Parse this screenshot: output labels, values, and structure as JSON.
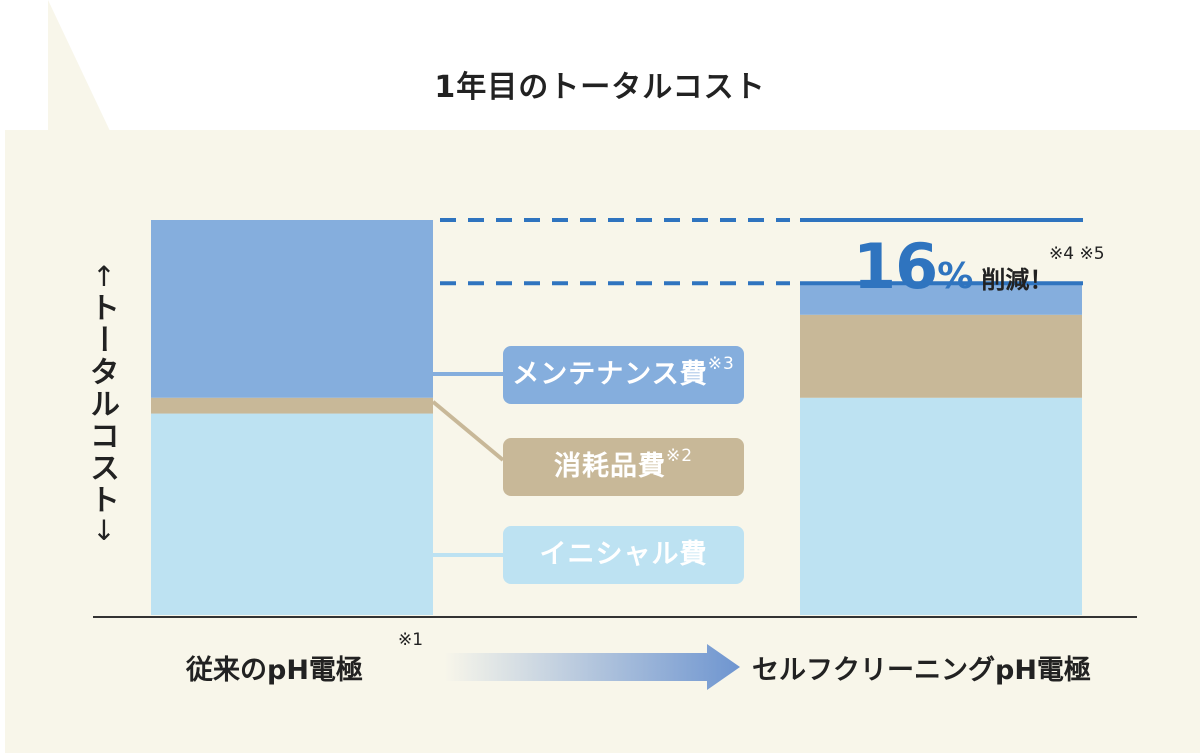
{
  "title": "1年目のトータルコスト",
  "y_label": "トータルコスト",
  "y_arrow_up": "↑",
  "y_arrow_down": "↓",
  "colors": {
    "background": "#f8f6ea",
    "initial": "#bde2f2",
    "consumables": "#c8b898",
    "maintenance": "#85aedd",
    "accent": "#2f74bf",
    "axis": "#333333"
  },
  "chart_data": {
    "type": "bar",
    "stacked": true,
    "categories": [
      "従来のpH電極",
      "セルフクリーニングpH電極"
    ],
    "category_notes": [
      "※1",
      ""
    ],
    "series": [
      {
        "name": "イニシャル費",
        "values": [
          51,
          55
        ],
        "color": "#bde2f2"
      },
      {
        "name": "消耗品費",
        "values": [
          4,
          21
        ],
        "color": "#c8b898"
      },
      {
        "name": "メンテナンス費",
        "values": [
          45,
          8
        ],
        "color": "#85aedd"
      }
    ],
    "series_notes": [
      "",
      "※2",
      "※3"
    ],
    "ylim": [
      0,
      100
    ],
    "totals": [
      100,
      84
    ],
    "annotation": {
      "value": "16",
      "unit": "%",
      "text": "削減！",
      "notes": "※4 ※5"
    },
    "arrow_direction": "right",
    "grid": false,
    "legend": "center"
  }
}
